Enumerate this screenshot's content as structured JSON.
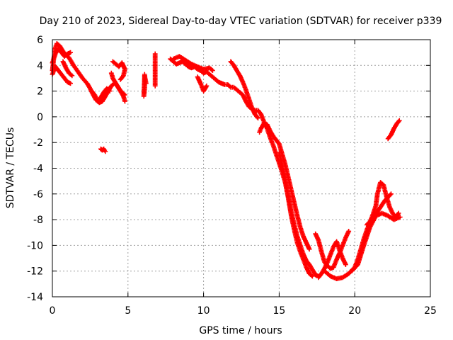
{
  "chart_data": {
    "type": "scatter",
    "title": "Day 210 of 2023, Sidereal Day-to-day VTEC variation (SDTVAR) for receiver p339",
    "xlabel": "GPS time / hours",
    "ylabel": "SDTVAR / TECUs",
    "xlim": [
      0,
      25
    ],
    "ylim": [
      -14,
      6
    ],
    "xticks": [
      "0",
      "5",
      "10",
      "15",
      "20",
      "25"
    ],
    "yticks": [
      "-14",
      "-12",
      "-10",
      "-8",
      "-6",
      "-4",
      "-2",
      "0",
      "2",
      "4",
      "6"
    ],
    "grid": true,
    "marker": "plus",
    "series": [
      {
        "name": "SDTVAR",
        "color": "#ff0000",
        "tracks": [
          [
            [
              0.0,
              3.6
            ],
            [
              0.1,
              4.6
            ],
            [
              0.2,
              5.4
            ],
            [
              0.3,
              5.7
            ],
            [
              0.5,
              5.5
            ],
            [
              0.7,
              5.1
            ],
            [
              0.9,
              4.8
            ],
            [
              1.1,
              4.6
            ],
            [
              1.4,
              4.0
            ],
            [
              1.7,
              3.5
            ],
            [
              2.0,
              3.0
            ],
            [
              2.3,
              2.6
            ],
            [
              2.5,
              2.2
            ],
            [
              2.7,
              1.7
            ],
            [
              2.9,
              1.3
            ],
            [
              3.1,
              1.1
            ],
            [
              3.3,
              1.2
            ],
            [
              3.5,
              1.6
            ],
            [
              3.7,
              2.0
            ],
            [
              3.9,
              2.4
            ],
            [
              4.1,
              2.6
            ],
            [
              4.3,
              2.4
            ],
            [
              4.5,
              2.0
            ],
            [
              4.7,
              1.6
            ],
            [
              4.8,
              1.2
            ]
          ],
          [
            [
              0.0,
              4.2
            ],
            [
              0.2,
              4.9
            ],
            [
              0.4,
              5.3
            ],
            [
              0.6,
              5.0
            ],
            [
              0.8,
              4.7
            ],
            [
              1.0,
              4.9
            ],
            [
              1.2,
              5.0
            ]
          ],
          [
            [
              0.0,
              3.3
            ],
            [
              0.2,
              3.9
            ],
            [
              0.4,
              3.6
            ],
            [
              0.6,
              3.3
            ],
            [
              0.8,
              3.0
            ],
            [
              1.0,
              2.7
            ],
            [
              1.2,
              2.6
            ]
          ],
          [
            [
              2.6,
              2.0
            ],
            [
              2.8,
              1.7
            ],
            [
              3.0,
              1.2
            ],
            [
              3.2,
              1.5
            ],
            [
              3.4,
              1.9
            ],
            [
              3.6,
              2.2
            ],
            [
              3.8,
              2.0
            ]
          ],
          [
            [
              4.0,
              4.3
            ],
            [
              4.2,
              4.1
            ],
            [
              4.4,
              3.9
            ],
            [
              4.6,
              4.2
            ],
            [
              4.8,
              3.7
            ],
            [
              4.7,
              3.2
            ],
            [
              4.5,
              2.9
            ]
          ],
          [
            [
              3.9,
              3.4
            ],
            [
              4.0,
              3.0
            ],
            [
              4.2,
              2.6
            ],
            [
              4.4,
              2.2
            ],
            [
              4.6,
              1.9
            ],
            [
              4.8,
              1.7
            ]
          ],
          [
            [
              0.7,
              4.3
            ],
            [
              0.9,
              3.8
            ],
            [
              1.1,
              3.4
            ],
            [
              1.3,
              3.2
            ]
          ],
          [
            [
              3.2,
              -2.5
            ],
            [
              3.3,
              -2.6
            ],
            [
              3.4,
              -2.5
            ],
            [
              3.5,
              -2.7
            ]
          ],
          [
            [
              6.1,
              3.3
            ],
            [
              6.1,
              2.2
            ],
            [
              6.05,
              1.6
            ],
            [
              6.1,
              3.2
            ],
            [
              6.2,
              2.6
            ]
          ],
          [
            [
              6.8,
              4.9
            ],
            [
              6.8,
              3.7
            ],
            [
              6.8,
              3.0
            ],
            [
              6.8,
              2.4
            ]
          ],
          [
            [
              7.8,
              4.5
            ],
            [
              8.0,
              4.3
            ],
            [
              8.2,
              4.1
            ],
            [
              8.4,
              4.2
            ],
            [
              8.6,
              4.3
            ],
            [
              8.8,
              4.1
            ],
            [
              9.0,
              3.9
            ],
            [
              9.2,
              3.8
            ],
            [
              9.4,
              3.9
            ],
            [
              9.6,
              3.7
            ],
            [
              9.8,
              3.6
            ],
            [
              10.0,
              3.4
            ],
            [
              10.2,
              3.5
            ],
            [
              10.4,
              3.3
            ],
            [
              10.6,
              3.1
            ],
            [
              10.8,
              2.9
            ],
            [
              11.0,
              2.7
            ],
            [
              11.2,
              2.6
            ],
            [
              11.4,
              2.5
            ],
            [
              11.6,
              2.5
            ],
            [
              11.8,
              2.3
            ],
            [
              12.0,
              2.3
            ],
            [
              12.2,
              2.1
            ],
            [
              12.4,
              1.9
            ],
            [
              12.6,
              1.7
            ],
            [
              12.8,
              1.2
            ],
            [
              13.0,
              0.8
            ],
            [
              13.2,
              0.6
            ],
            [
              13.4,
              0.5
            ],
            [
              13.6,
              0.5
            ],
            [
              13.8,
              0.2
            ],
            [
              14.0,
              -0.4
            ],
            [
              14.2,
              -0.9
            ],
            [
              14.4,
              -1.6
            ],
            [
              14.6,
              -2.2
            ],
            [
              14.8,
              -2.9
            ],
            [
              15.0,
              -3.6
            ],
            [
              15.2,
              -4.3
            ],
            [
              15.4,
              -5.1
            ],
            [
              15.6,
              -6.3
            ],
            [
              15.8,
              -7.7
            ],
            [
              16.0,
              -8.8
            ],
            [
              16.2,
              -9.8
            ],
            [
              16.4,
              -10.5
            ],
            [
              16.6,
              -11.1
            ],
            [
              16.8,
              -11.7
            ],
            [
              17.0,
              -12.2
            ],
            [
              17.2,
              -12.4
            ]
          ],
          [
            [
              8.0,
              4.5
            ],
            [
              8.4,
              4.7
            ],
            [
              8.8,
              4.4
            ],
            [
              9.2,
              4.1
            ],
            [
              9.6,
              3.9
            ],
            [
              10.0,
              3.7
            ],
            [
              10.4,
              3.8
            ],
            [
              10.6,
              3.6
            ]
          ],
          [
            [
              9.6,
              3.1
            ],
            [
              9.8,
              2.6
            ],
            [
              10.0,
              2.0
            ],
            [
              10.2,
              2.4
            ]
          ],
          [
            [
              11.8,
              4.3
            ],
            [
              12.0,
              4.0
            ],
            [
              12.2,
              3.6
            ],
            [
              12.4,
              3.2
            ],
            [
              12.6,
              2.7
            ],
            [
              12.8,
              2.1
            ],
            [
              13.0,
              1.4
            ],
            [
              13.2,
              0.7
            ],
            [
              13.4,
              0.2
            ],
            [
              13.6,
              -0.1
            ]
          ],
          [
            [
              13.7,
              -1.2
            ],
            [
              13.8,
              -0.9
            ],
            [
              14.0,
              -0.5
            ],
            [
              14.2,
              -0.6
            ],
            [
              14.4,
              -1.1
            ],
            [
              14.6,
              -1.5
            ],
            [
              14.8,
              -1.8
            ],
            [
              15.0,
              -2.1
            ],
            [
              15.2,
              -2.9
            ],
            [
              15.4,
              -3.7
            ],
            [
              15.6,
              -4.7
            ],
            [
              15.8,
              -5.7
            ],
            [
              16.0,
              -6.7
            ],
            [
              16.2,
              -7.7
            ],
            [
              16.4,
              -8.6
            ],
            [
              16.6,
              -9.3
            ],
            [
              16.8,
              -9.8
            ],
            [
              17.0,
              -10.3
            ]
          ],
          [
            [
              15.0,
              -2.8
            ],
            [
              15.2,
              -3.8
            ],
            [
              15.4,
              -4.9
            ],
            [
              15.6,
              -6.2
            ],
            [
              15.8,
              -7.4
            ],
            [
              16.0,
              -8.4
            ],
            [
              16.2,
              -9.3
            ],
            [
              16.4,
              -10.0
            ],
            [
              16.6,
              -10.7
            ],
            [
              16.8,
              -11.2
            ],
            [
              17.0,
              -11.5
            ],
            [
              17.2,
              -11.9
            ],
            [
              17.4,
              -12.3
            ],
            [
              17.6,
              -12.4
            ]
          ],
          [
            [
              17.4,
              -9.1
            ],
            [
              17.6,
              -9.6
            ],
            [
              17.8,
              -10.5
            ],
            [
              18.0,
              -11.3
            ],
            [
              18.2,
              -11.6
            ],
            [
              18.4,
              -11.8
            ],
            [
              18.6,
              -11.7
            ],
            [
              18.8,
              -11.1
            ],
            [
              19.0,
              -10.6
            ],
            [
              19.2,
              -10.0
            ],
            [
              19.4,
              -9.4
            ],
            [
              19.6,
              -8.9
            ]
          ],
          [
            [
              17.6,
              -12.5
            ],
            [
              17.8,
              -12.2
            ],
            [
              18.0,
              -11.8
            ],
            [
              18.2,
              -11.3
            ],
            [
              18.4,
              -10.7
            ],
            [
              18.6,
              -10.1
            ],
            [
              18.8,
              -9.7
            ],
            [
              19.0,
              -10.4
            ],
            [
              19.2,
              -11.0
            ],
            [
              19.4,
              -11.5
            ]
          ],
          [
            [
              18.0,
              -12.0
            ],
            [
              18.4,
              -12.4
            ],
            [
              18.8,
              -12.6
            ],
            [
              19.2,
              -12.5
            ],
            [
              19.6,
              -12.2
            ],
            [
              20.0,
              -11.7
            ],
            [
              20.2,
              -11.1
            ],
            [
              20.4,
              -10.3
            ],
            [
              20.6,
              -9.5
            ],
            [
              20.8,
              -8.8
            ],
            [
              21.0,
              -8.2
            ],
            [
              21.2,
              -7.6
            ],
            [
              21.4,
              -6.9
            ],
            [
              21.5,
              -6.0
            ],
            [
              21.7,
              -5.1
            ],
            [
              21.9,
              -5.3
            ],
            [
              22.1,
              -6.2
            ],
            [
              22.3,
              -7.0
            ],
            [
              22.5,
              -7.5
            ],
            [
              22.7,
              -7.8
            ],
            [
              22.9,
              -7.5
            ]
          ],
          [
            [
              19.8,
              -12.0
            ],
            [
              20.2,
              -11.5
            ],
            [
              20.6,
              -10.0
            ],
            [
              21.0,
              -8.6
            ],
            [
              21.4,
              -7.7
            ],
            [
              21.8,
              -7.5
            ],
            [
              22.2,
              -7.7
            ],
            [
              22.6,
              -8.0
            ],
            [
              23.0,
              -7.8
            ]
          ],
          [
            [
              20.8,
              -8.4
            ],
            [
              21.2,
              -7.9
            ],
            [
              21.6,
              -7.2
            ],
            [
              22.0,
              -6.5
            ],
            [
              22.4,
              -6.0
            ]
          ],
          [
            [
              22.2,
              -1.7
            ],
            [
              22.4,
              -1.4
            ],
            [
              22.6,
              -0.9
            ],
            [
              22.8,
              -0.5
            ],
            [
              22.95,
              -0.3
            ]
          ]
        ]
      }
    ]
  }
}
